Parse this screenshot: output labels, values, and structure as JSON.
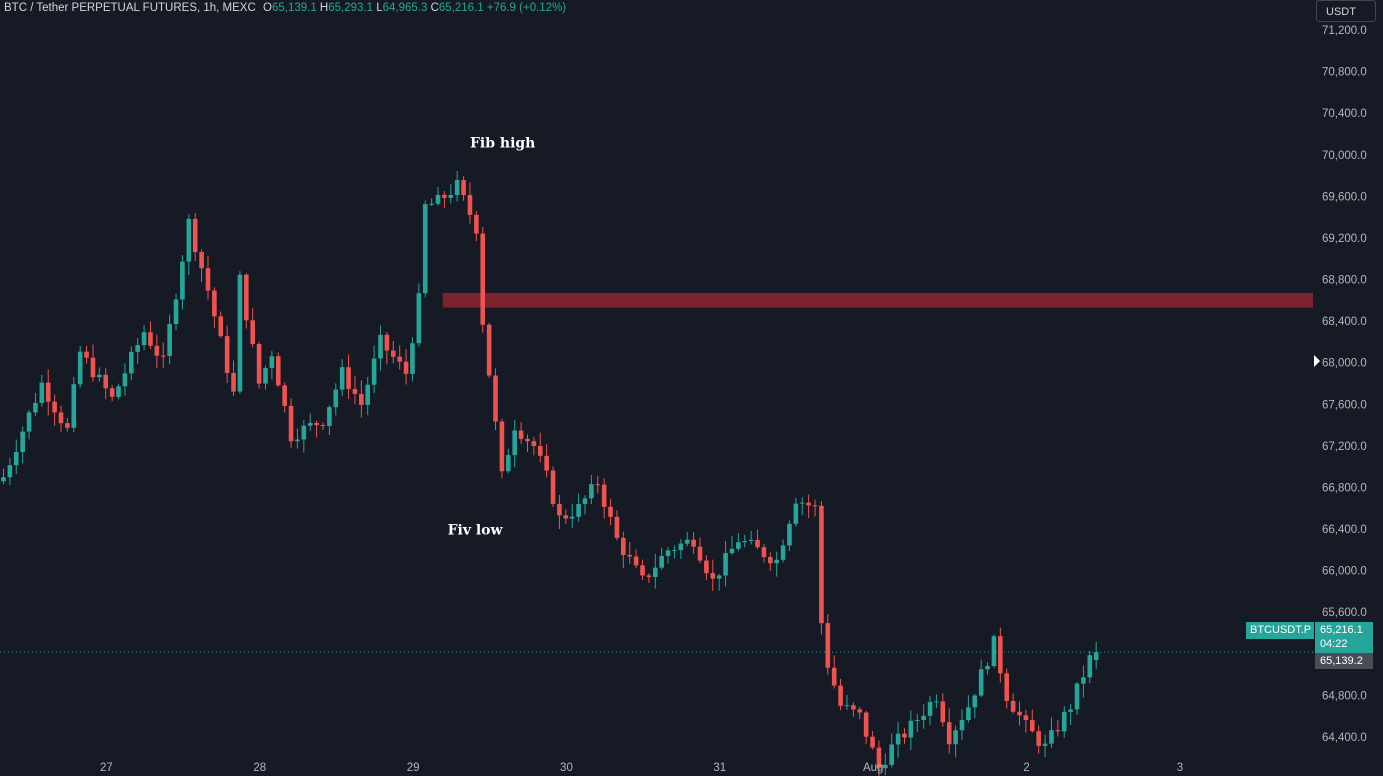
{
  "header": {
    "symbol": "BTC / Tether PERPETUAL FUTURES, 1h, MEXC",
    "o_label": "O",
    "o_value": "65,139.1",
    "h_label": "H",
    "h_value": "65,293.1",
    "l_label": "L",
    "l_value": "64,965.3",
    "c_label": "C",
    "c_value": "65,216.1",
    "change": "+76.9 (+0.12%)"
  },
  "currency_button": "USDT",
  "price_tags": {
    "symbol_label": "BTCUSDT.P",
    "last_price": "65,216.1",
    "countdown": "04:22",
    "open_price": "65,139.2"
  },
  "colors": {
    "background": "#161a25",
    "up": "#26a69a",
    "down": "#ef5350",
    "zone": "#7e2230",
    "text": "#b2b5be"
  },
  "chart_data": {
    "type": "candlestick",
    "timeframe": "1h",
    "ylim": [
      64200,
      71300
    ],
    "y_ticks": [
      "64,400.0",
      "64,800.0",
      "65,200.0",
      "65,600.0",
      "66,000.0",
      "66,400.0",
      "66,800.0",
      "67,200.0",
      "67,600.0",
      "68,000.0",
      "68,400.0",
      "68,800.0",
      "69,200.0",
      "69,600.0",
      "70,000.0",
      "70,400.0",
      "70,800.0",
      "71,200.0"
    ],
    "x_ticks": [
      "27",
      "28",
      "29",
      "30",
      "31",
      "Aug",
      "2",
      "3"
    ],
    "last_price": 65216.1,
    "open_price": 65139.2,
    "zone": {
      "from_x": 69.2,
      "to_x": 137,
      "low": 68530,
      "high": 68670
    },
    "annotations": [
      {
        "text": "Fib high",
        "x": 73.0,
        "price": 70070
      },
      {
        "text": "Fiv low",
        "x": 69.5,
        "price": 66350
      }
    ],
    "key_prices": [
      {
        "x": 0,
        "price": 66900
      },
      {
        "x": 6,
        "price": 67800
      },
      {
        "x": 10,
        "price": 67350
      },
      {
        "x": 12,
        "price": 68100
      },
      {
        "x": 17,
        "price": 67650
      },
      {
        "x": 22,
        "price": 68300
      },
      {
        "x": 25,
        "price": 68000
      },
      {
        "x": 29,
        "price": 69350
      },
      {
        "x": 32,
        "price": 68700
      },
      {
        "x": 36,
        "price": 67700
      },
      {
        "x": 37,
        "price": 68800
      },
      {
        "x": 40,
        "price": 67800
      },
      {
        "x": 42,
        "price": 68100
      },
      {
        "x": 45,
        "price": 67300
      },
      {
        "x": 50,
        "price": 67450
      },
      {
        "x": 53,
        "price": 67900
      },
      {
        "x": 56,
        "price": 67600
      },
      {
        "x": 59,
        "price": 68200
      },
      {
        "x": 63,
        "price": 67900
      },
      {
        "x": 65,
        "price": 68600
      },
      {
        "x": 66,
        "price": 69500
      },
      {
        "x": 68,
        "price": 69550
      },
      {
        "x": 71,
        "price": 69700
      },
      {
        "x": 74,
        "price": 69300
      },
      {
        "x": 75,
        "price": 68400
      },
      {
        "x": 76,
        "price": 67900
      },
      {
        "x": 78,
        "price": 66900
      },
      {
        "x": 80,
        "price": 67400
      },
      {
        "x": 83,
        "price": 67200
      },
      {
        "x": 85,
        "price": 66900
      },
      {
        "x": 87,
        "price": 66500
      },
      {
        "x": 90,
        "price": 66600
      },
      {
        "x": 93,
        "price": 66850
      },
      {
        "x": 96,
        "price": 66300
      },
      {
        "x": 100,
        "price": 65900
      },
      {
        "x": 104,
        "price": 66200
      },
      {
        "x": 108,
        "price": 66300
      },
      {
        "x": 111,
        "price": 65900
      },
      {
        "x": 115,
        "price": 66300
      },
      {
        "x": 121,
        "price": 66100
      },
      {
        "x": 124,
        "price": 66700
      },
      {
        "x": 127,
        "price": 66600
      },
      {
        "x": 128,
        "price": 65500
      },
      {
        "x": 129,
        "price": 65100
      },
      {
        "x": 131,
        "price": 64700
      },
      {
        "x": 134,
        "price": 64600
      },
      {
        "x": 137,
        "price": 64100
      },
      {
        "x": 139,
        "price": 64300
      },
      {
        "x": 142,
        "price": 64500
      },
      {
        "x": 146,
        "price": 64800
      },
      {
        "x": 148,
        "price": 64400
      },
      {
        "x": 151,
        "price": 64700
      },
      {
        "x": 155,
        "price": 65300
      },
      {
        "x": 157,
        "price": 64800
      },
      {
        "x": 160,
        "price": 64500
      },
      {
        "x": 163,
        "price": 64300
      },
      {
        "x": 167,
        "price": 64700
      },
      {
        "x": 170,
        "price": 65150
      },
      {
        "x": 171,
        "price": 65216.1
      }
    ]
  }
}
